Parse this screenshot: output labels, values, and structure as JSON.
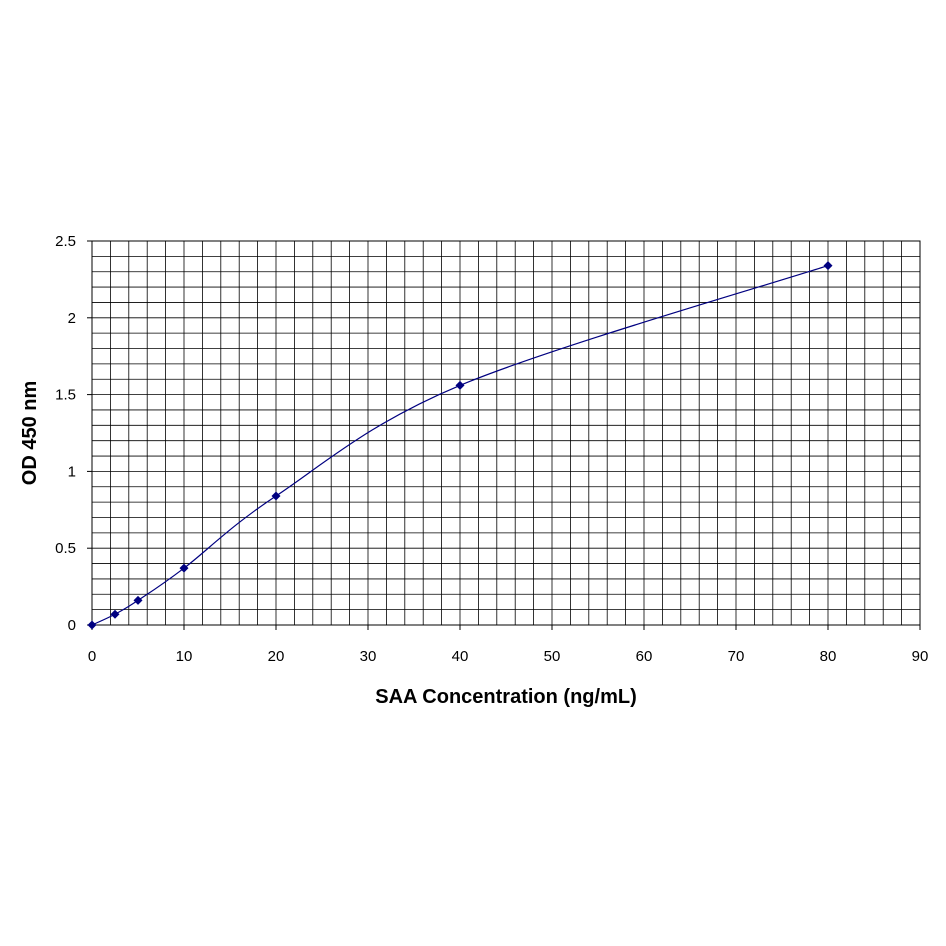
{
  "chart_data": {
    "type": "scatter",
    "title": "",
    "xlabel": "SAA Concentration (ng/mL)",
    "ylabel": "OD 450 nm",
    "xlim": [
      0,
      90
    ],
    "ylim": [
      0,
      2.5
    ],
    "x_ticks": [
      "0",
      "10",
      "20",
      "30",
      "40",
      "50",
      "60",
      "70",
      "80",
      "90"
    ],
    "y_ticks": [
      "0",
      "0.5",
      "1",
      "1.5",
      "2",
      "2.5"
    ],
    "grid": true,
    "legend": "none",
    "series": [
      {
        "x": [
          0,
          2.5,
          5,
          10,
          20,
          40,
          80
        ],
        "y": [
          0.0,
          0.07,
          0.16,
          0.37,
          0.84,
          1.56,
          2.34
        ],
        "marker": "diamond",
        "line": "smoothed",
        "color": "#000080"
      }
    ]
  }
}
